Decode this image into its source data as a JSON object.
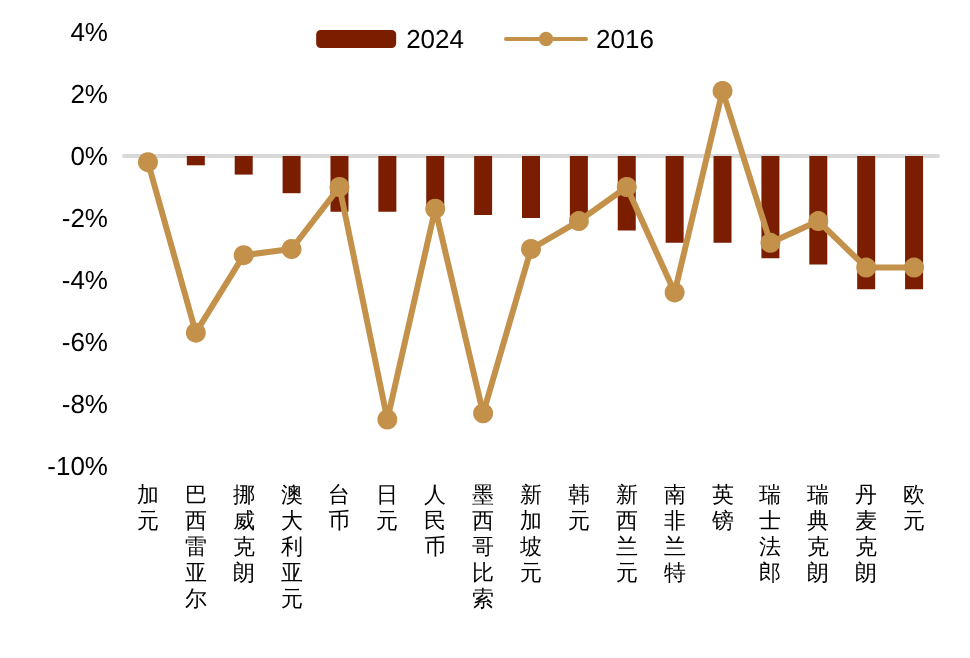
{
  "chart_data": {
    "type": "bar",
    "categories": [
      "加元",
      "巴西雷亚尔",
      "挪威克朗",
      "澳大利亚元",
      "台币",
      "日元",
      "人民币",
      "墨西哥比索",
      "新加坡元",
      "韩元",
      "新西兰元",
      "南非兰特",
      "英镑",
      "瑞士法郎",
      "瑞典克朗",
      "丹麦克朗",
      "欧元"
    ],
    "series": [
      {
        "name": "2024",
        "color": "#7b1e00",
        "values": [
          0,
          -0.3,
          -0.6,
          -1.2,
          -1.8,
          -1.8,
          -1.6,
          -1.9,
          -2.0,
          -2.1,
          -2.4,
          -2.8,
          -2.8,
          -3.3,
          -3.5,
          -4.3,
          -4.3
        ]
      },
      {
        "name": "2016",
        "type": "line",
        "color": "#c4914b",
        "values": [
          -0.2,
          -5.7,
          -3.2,
          -3.0,
          -1.0,
          -8.5,
          -1.7,
          -8.3,
          -3.0,
          -2.1,
          -1.0,
          -4.4,
          2.1,
          -2.8,
          -2.1,
          -3.6,
          -3.6
        ]
      }
    ],
    "ylim": [
      -10,
      4
    ],
    "yticks": [
      {
        "value": -10,
        "label": "-10%"
      },
      {
        "value": -8,
        "label": "-8%"
      },
      {
        "value": -6,
        "label": "-6%"
      },
      {
        "value": -4,
        "label": "-4%"
      },
      {
        "value": -2,
        "label": "-2%"
      },
      {
        "value": 0,
        "label": "0%"
      },
      {
        "value": 2,
        "label": "2%"
      },
      {
        "value": 4,
        "label": "4%"
      }
    ],
    "legend": "top",
    "marker": "circle",
    "line_style": "solid"
  }
}
